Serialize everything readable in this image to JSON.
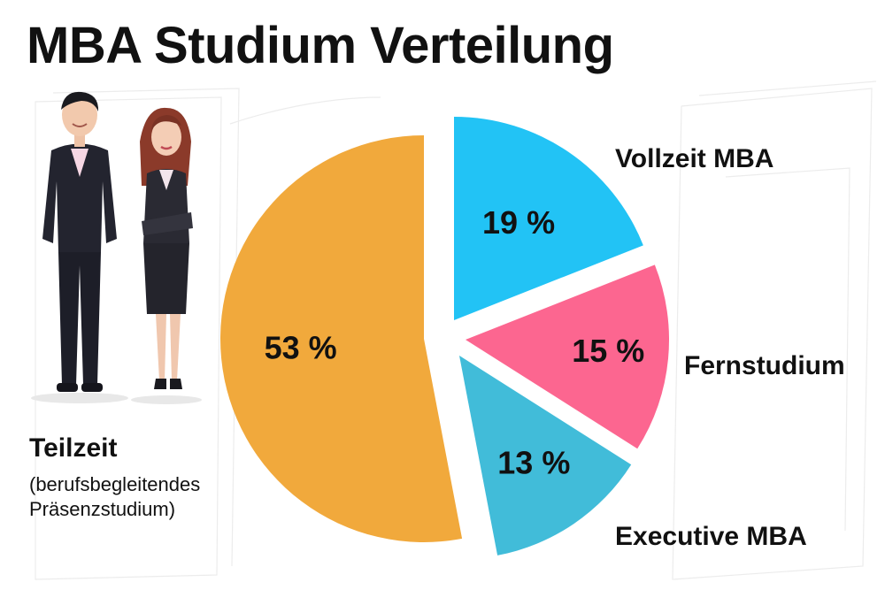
{
  "chart_data": {
    "type": "pie",
    "title": "MBA Studium Verteilung",
    "slices": [
      {
        "name": "Vollzeit MBA",
        "value": 19,
        "label": "19 %",
        "color": "#22c3f5"
      },
      {
        "name": "Fernstudium",
        "value": 15,
        "label": "15 %",
        "color": "#fc6690"
      },
      {
        "name": "Executive MBA",
        "value": 13,
        "label": "13 %",
        "color": "#41bcd9"
      },
      {
        "name": "Teilzeit",
        "value": 53,
        "label": "53 %",
        "color": "#f1a93c"
      }
    ],
    "teilzeit_note_line1": "(berufsbegleitendes",
    "teilzeit_note_line2": "Präsenzstudium)"
  }
}
